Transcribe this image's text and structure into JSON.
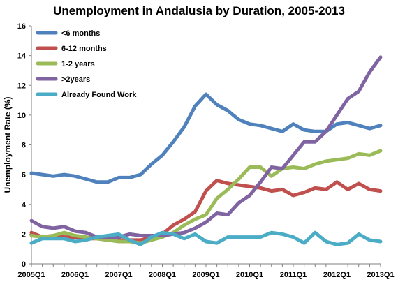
{
  "chart_data": {
    "type": "line",
    "title": "Unemployment in Andalusia by Duration, 2005-2013",
    "xlabel": "",
    "ylabel": "Unemployment Rate (%)",
    "ylim": [
      0,
      16
    ],
    "yticks": [
      "0",
      "2",
      "4",
      "6",
      "8",
      "10",
      "12",
      "14",
      "16"
    ],
    "grid": false,
    "legend_position": "top-left",
    "x": [
      "2005Q1",
      "2005Q2",
      "2005Q3",
      "2005Q4",
      "2006Q1",
      "2006Q2",
      "2006Q3",
      "2006Q4",
      "2007Q1",
      "2007Q2",
      "2007Q3",
      "2007Q4",
      "2008Q1",
      "2008Q2",
      "2008Q3",
      "2008Q4",
      "2009Q1",
      "2009Q2",
      "2009Q3",
      "2009Q4",
      "2010Q1",
      "2010Q2",
      "2010Q3",
      "2010Q4",
      "2011Q1",
      "2011Q2",
      "2011Q3",
      "2011Q4",
      "2012Q1",
      "2012Q2",
      "2012Q3",
      "2012Q4",
      "2013Q1"
    ],
    "xtick_labels": [
      "2005Q1",
      "2006Q1",
      "2007Q1",
      "2008Q1",
      "2009Q1",
      "2010Q1",
      "2011Q1",
      "2012Q1",
      "2013Q1"
    ],
    "xtick_indices": [
      0,
      4,
      8,
      12,
      16,
      20,
      24,
      28,
      32
    ],
    "series": [
      {
        "name": "<6 months",
        "color": "#4f81bd",
        "values": [
          6.1,
          6.0,
          5.9,
          6.0,
          5.9,
          5.7,
          5.5,
          5.5,
          5.8,
          5.8,
          6.0,
          6.7,
          7.3,
          8.2,
          9.2,
          10.6,
          11.4,
          10.7,
          10.3,
          9.7,
          9.4,
          9.3,
          9.1,
          8.9,
          9.4,
          9.0,
          8.9,
          8.9,
          9.4,
          9.5,
          9.3,
          9.1,
          9.3
        ]
      },
      {
        "name": "6-12 months",
        "color": "#c0504d",
        "values": [
          2.1,
          1.8,
          1.9,
          1.8,
          1.8,
          1.7,
          1.7,
          1.6,
          1.6,
          1.6,
          1.6,
          1.8,
          2.0,
          2.6,
          3.0,
          3.5,
          4.9,
          5.6,
          5.4,
          5.3,
          5.2,
          5.1,
          4.9,
          5.0,
          4.6,
          4.8,
          5.1,
          5.0,
          5.5,
          5.0,
          5.4,
          5.0,
          4.9
        ]
      },
      {
        "name": "1-2 years",
        "color": "#9bbb59",
        "values": [
          1.9,
          1.8,
          1.9,
          2.1,
          1.9,
          1.8,
          1.7,
          1.6,
          1.5,
          1.5,
          1.4,
          1.6,
          1.8,
          2.1,
          2.6,
          3.0,
          3.3,
          4.4,
          5.0,
          5.7,
          6.5,
          6.5,
          5.9,
          6.4,
          6.5,
          6.4,
          6.7,
          6.9,
          7.0,
          7.1,
          7.4,
          7.3,
          7.6
        ]
      },
      {
        "name": ">2years",
        "color": "#8064a2",
        "values": [
          2.9,
          2.5,
          2.4,
          2.5,
          2.2,
          2.1,
          1.8,
          1.8,
          1.8,
          2.0,
          1.9,
          1.9,
          1.9,
          2.0,
          2.1,
          2.4,
          2.8,
          3.4,
          3.3,
          4.1,
          4.6,
          5.5,
          6.5,
          6.4,
          7.3,
          8.2,
          8.2,
          8.9,
          10.0,
          11.1,
          11.6,
          12.9,
          13.9
        ]
      },
      {
        "name": "Already Found Work",
        "color": "#4bacc6",
        "values": [
          1.4,
          1.7,
          1.7,
          1.7,
          1.5,
          1.6,
          1.8,
          1.9,
          2.0,
          1.6,
          1.3,
          1.8,
          2.1,
          2.0,
          1.7,
          2.0,
          1.5,
          1.4,
          1.8,
          1.8,
          1.8,
          1.8,
          2.1,
          2.0,
          1.8,
          1.4,
          2.1,
          1.5,
          1.3,
          1.4,
          2.0,
          1.6,
          1.5
        ]
      }
    ]
  }
}
